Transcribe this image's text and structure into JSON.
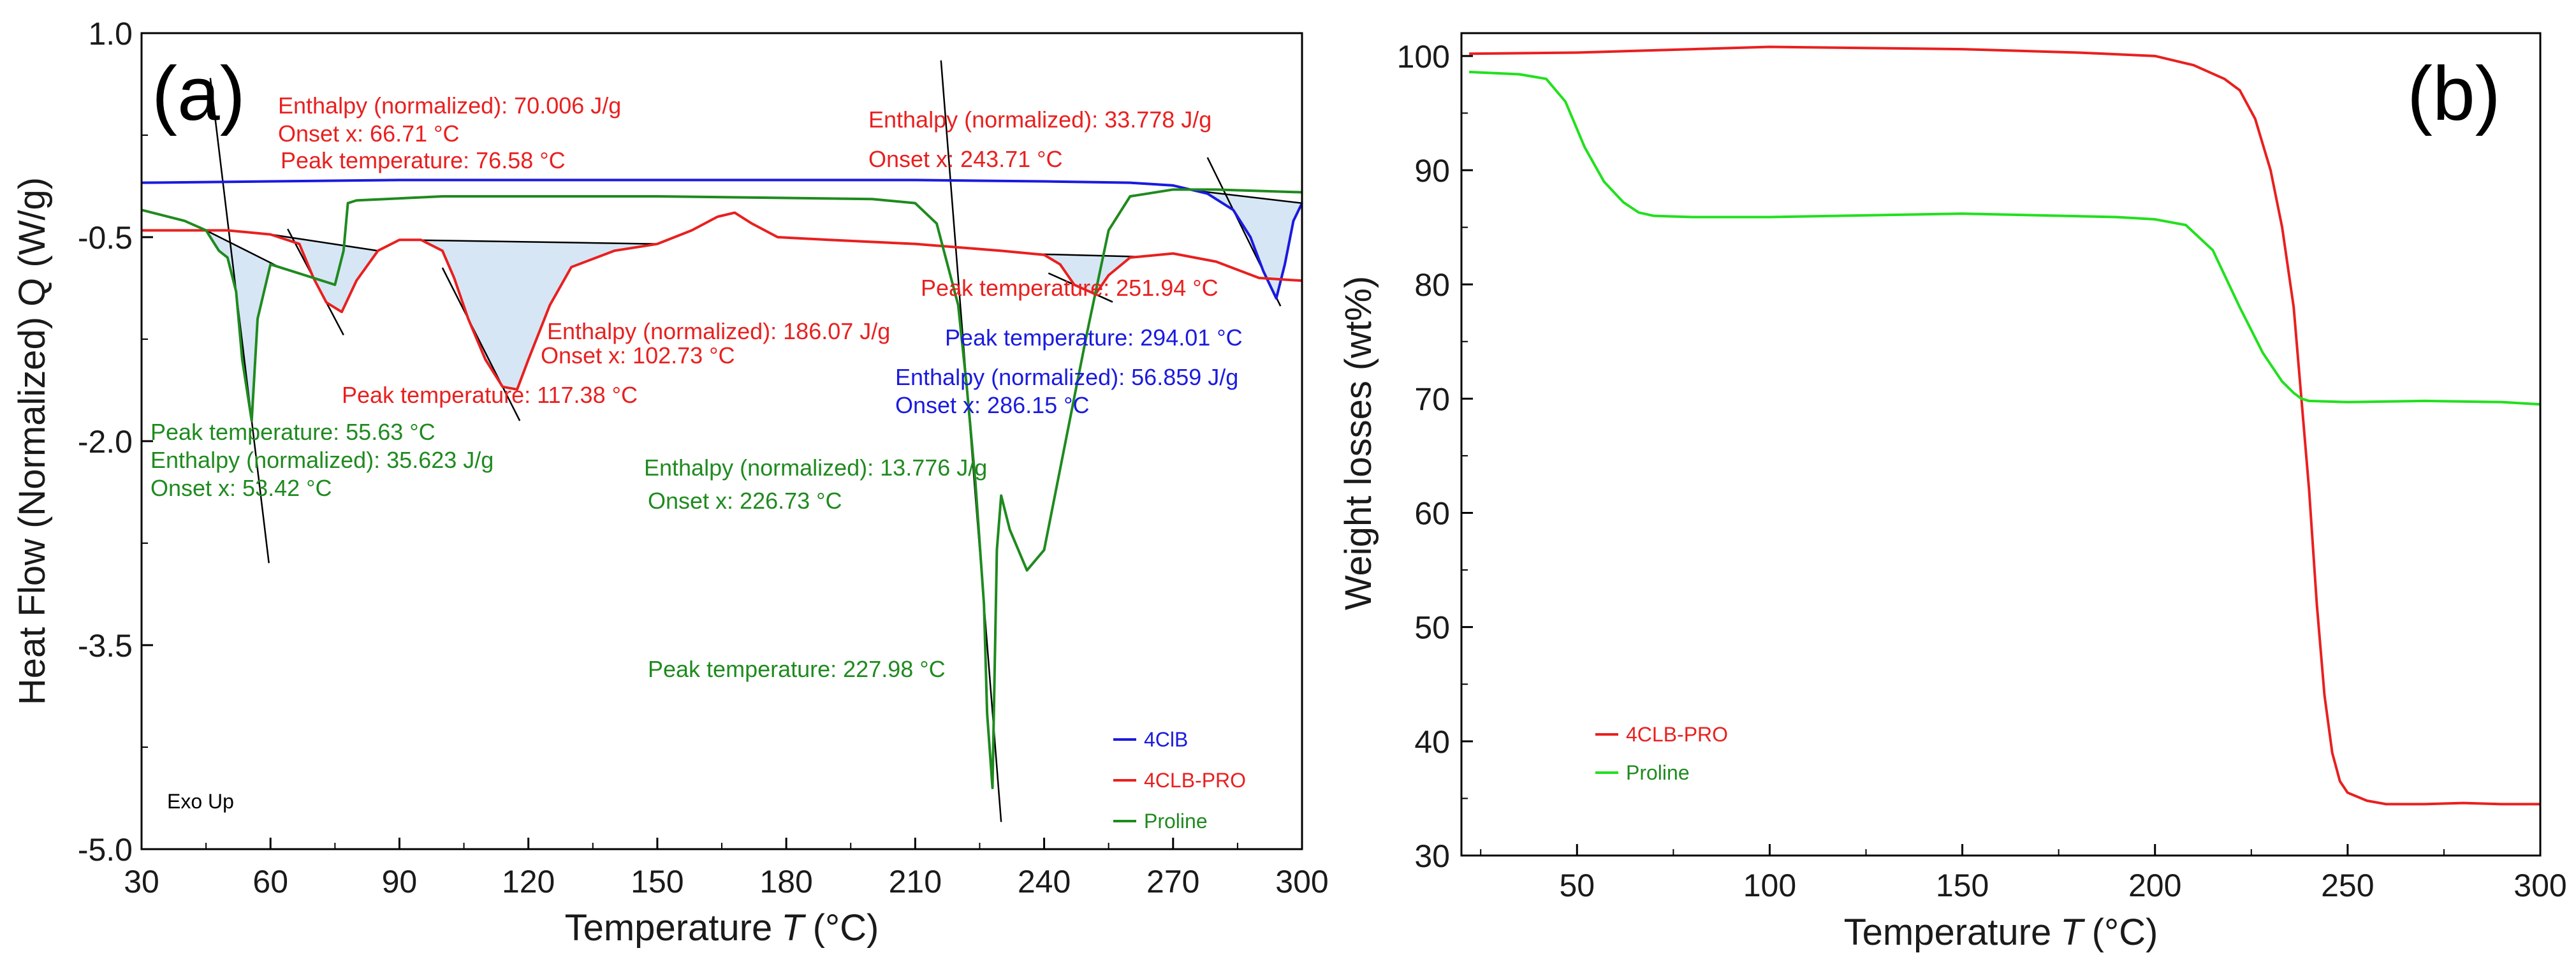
{
  "chart_data": [
    {
      "type": "line",
      "panel_label": "(a)",
      "xlabel": "Temperature",
      "xlabel_italic": "T",
      "xlabel_unit": "(°C)",
      "ylabel": "Heat Flow (Normalized) Q (W/g)",
      "xlim": [
        30,
        300
      ],
      "ylim": [
        -5.0,
        1.0
      ],
      "x_ticks": [
        30,
        60,
        90,
        120,
        150,
        180,
        210,
        240,
        270,
        300
      ],
      "x_tick_labels": [
        "30",
        "60",
        "90",
        "120",
        "150",
        "180",
        "210",
        "240",
        "270",
        "300"
      ],
      "y_ticks": [
        1.0,
        -0.5,
        -2.0,
        -3.5,
        -5.0
      ],
      "y_tick_labels": [
        "1.0",
        "-0.5",
        "-2.0",
        "-3.5",
        "-5.0"
      ],
      "grid": false,
      "note": "Exo Up",
      "legend_position": "bottom-right",
      "colors": {
        "4ClB": "#1a1adf",
        "4CLB-PRO": "#e8201f",
        "Proline": "#1f8a1f",
        "fill": "#d6e6f5"
      },
      "series": [
        {
          "name": "4ClB",
          "color": "#1a1adf",
          "x": [
            30,
            60,
            90,
            120,
            150,
            180,
            210,
            240,
            260,
            270,
            278,
            284,
            288,
            291,
            294.01,
            296,
            298,
            300
          ],
          "y": [
            -0.1,
            -0.09,
            -0.08,
            -0.08,
            -0.08,
            -0.08,
            -0.08,
            -0.09,
            -0.1,
            -0.12,
            -0.18,
            -0.3,
            -0.5,
            -0.75,
            -0.95,
            -0.7,
            -0.38,
            -0.25
          ]
        },
        {
          "name": "4CLB-PRO",
          "color": "#e8201f",
          "x": [
            30,
            50,
            60,
            66.71,
            70,
            73,
            76.58,
            80,
            85,
            90,
            95,
            100,
            102.73,
            106,
            110,
            114,
            117.38,
            120,
            125,
            130,
            140,
            150,
            158,
            164,
            168,
            172,
            178,
            190,
            210,
            230,
            240,
            243.71,
            247,
            251.94,
            255,
            260,
            270,
            280,
            290,
            300
          ],
          "y": [
            -0.45,
            -0.45,
            -0.48,
            -0.55,
            -0.8,
            -0.98,
            -1.05,
            -0.82,
            -0.6,
            -0.52,
            -0.52,
            -0.6,
            -0.8,
            -1.1,
            -1.4,
            -1.6,
            -1.62,
            -1.4,
            -1.0,
            -0.72,
            -0.6,
            -0.55,
            -0.45,
            -0.35,
            -0.32,
            -0.4,
            -0.5,
            -0.52,
            -0.55,
            -0.6,
            -0.63,
            -0.7,
            -0.85,
            -0.92,
            -0.78,
            -0.65,
            -0.62,
            -0.68,
            -0.8,
            -0.82
          ]
        },
        {
          "name": "Proline",
          "color": "#1f8a1f",
          "x": [
            30,
            40,
            45,
            48,
            50,
            52,
            53.42,
            55.63,
            57,
            60,
            65,
            70,
            75,
            77,
            78,
            80,
            100,
            150,
            200,
            210,
            215,
            220,
            222,
            224,
            226,
            226.73,
            227.98,
            229,
            230,
            232,
            236,
            240,
            245,
            250,
            255,
            260,
            270,
            280,
            290,
            300
          ],
          "y": [
            -0.3,
            -0.38,
            -0.45,
            -0.6,
            -0.65,
            -0.9,
            -1.4,
            -1.85,
            -1.1,
            -0.7,
            -0.75,
            -0.8,
            -0.85,
            -0.6,
            -0.25,
            -0.23,
            -0.2,
            -0.2,
            -0.22,
            -0.25,
            -0.4,
            -1.0,
            -1.6,
            -2.3,
            -3.2,
            -4.0,
            -4.55,
            -2.8,
            -2.4,
            -2.65,
            -2.95,
            -2.8,
            -2.0,
            -1.2,
            -0.45,
            -0.2,
            -0.15,
            -0.15,
            -0.16,
            -0.17
          ]
        }
      ],
      "annotations": [
        {
          "text": "Enthalpy (normalized): 70.006 J/g",
          "series": "4CLB-PRO"
        },
        {
          "text": "Onset x: 66.71 °C",
          "series": "4CLB-PRO"
        },
        {
          "text": "Peak temperature: 76.58 °C",
          "series": "4CLB-PRO"
        },
        {
          "text": "Enthalpy (normalized): 33.778 J/g",
          "series": "4CLB-PRO"
        },
        {
          "text": "Onset x: 243.71 °C",
          "series": "4CLB-PRO"
        },
        {
          "text": "Peak temperature: 251.94 °C",
          "series": "4CLB-PRO"
        },
        {
          "text": "Enthalpy (normalized): 186.07 J/g",
          "series": "4CLB-PRO"
        },
        {
          "text": "Onset x: 102.73 °C",
          "series": "4CLB-PRO"
        },
        {
          "text": "Peak temperature: 117.38 °C",
          "series": "4CLB-PRO"
        },
        {
          "text": "Peak temperature: 294.01 °C",
          "series": "4ClB"
        },
        {
          "text": "Enthalpy (normalized): 56.859 J/g",
          "series": "4ClB"
        },
        {
          "text": "Onset x: 286.15 °C",
          "series": "4ClB"
        },
        {
          "text": "Peak temperature: 55.63 °C",
          "series": "Proline"
        },
        {
          "text": "Enthalpy (normalized): 35.623 J/g",
          "series": "Proline"
        },
        {
          "text": "Onset x: 53.42 °C",
          "series": "Proline"
        },
        {
          "text": "Enthalpy (normalized): 13.776 J/g",
          "series": "Proline"
        },
        {
          "text": "Onset x: 226.73 °C",
          "series": "Proline"
        },
        {
          "text": "Peak temperature: 227.98 °C",
          "series": "Proline"
        }
      ]
    },
    {
      "type": "line",
      "panel_label": "(b)",
      "xlabel": "Temperature",
      "xlabel_italic": "T",
      "xlabel_unit": "(°C)",
      "ylabel": "Weight losses (wt%)",
      "xlim": [
        20,
        300
      ],
      "ylim": [
        30,
        102
      ],
      "x_ticks": [
        50,
        100,
        150,
        200,
        250,
        300
      ],
      "x_tick_labels": [
        "50",
        "100",
        "150",
        "200",
        "250",
        "300"
      ],
      "y_ticks": [
        30,
        40,
        50,
        60,
        70,
        80,
        90,
        100
      ],
      "y_tick_labels": [
        "30",
        "40",
        "50",
        "60",
        "70",
        "80",
        "90",
        "100"
      ],
      "grid": false,
      "legend_position": "bottom-left",
      "series": [
        {
          "name": "4CLB-PRO",
          "color": "#e8201f",
          "x": [
            22,
            50,
            80,
            100,
            150,
            180,
            200,
            210,
            218,
            222,
            226,
            230,
            233,
            236,
            238,
            240,
            242,
            244,
            246,
            248,
            250,
            255,
            260,
            270,
            280,
            290,
            300
          ],
          "y": [
            100.2,
            100.3,
            100.6,
            100.8,
            100.6,
            100.3,
            100,
            99.2,
            98.0,
            97.0,
            94.5,
            90,
            85,
            78,
            70,
            62,
            52,
            44,
            39,
            36.5,
            35.5,
            34.8,
            34.5,
            34.5,
            34.6,
            34.5,
            34.5
          ]
        },
        {
          "name": "Proline",
          "color": "#22e01e",
          "x": [
            22,
            35,
            42,
            47,
            52,
            57,
            62,
            66,
            70,
            80,
            100,
            150,
            190,
            200,
            208,
            215,
            222,
            228,
            233,
            236,
            238,
            240,
            250,
            270,
            290,
            300
          ],
          "y": [
            98.6,
            98.4,
            98.0,
            96.0,
            92.0,
            89.0,
            87.2,
            86.3,
            86.0,
            85.9,
            85.9,
            86.2,
            85.9,
            85.7,
            85.2,
            83.0,
            78.0,
            74.0,
            71.5,
            70.5,
            70.0,
            69.8,
            69.7,
            69.8,
            69.7,
            69.5
          ]
        }
      ]
    }
  ]
}
